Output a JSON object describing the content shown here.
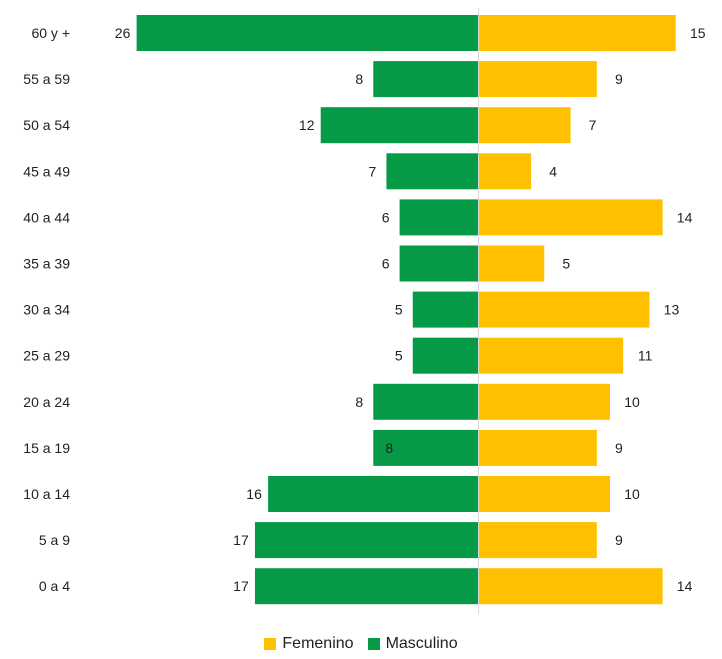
{
  "chart_data": {
    "type": "bar",
    "orientation": "horizontal-diverging",
    "categories": [
      "60 y +",
      "55 a 59",
      "50 a 54",
      "45 a 49",
      "40 a 44",
      "35 a 39",
      "30 a 34",
      "25 a 29",
      "20 a 24",
      "15 a 19",
      "10 a 14",
      "5 a 9",
      "0 a 4"
    ],
    "series": [
      {
        "name": "Femenino",
        "side": "right",
        "color": "#FFC000",
        "values": [
          15,
          9,
          7,
          4,
          14,
          5,
          13,
          11,
          10,
          9,
          10,
          9,
          14
        ]
      },
      {
        "name": "Masculino",
        "side": "left",
        "color": "#069A46",
        "values": [
          26,
          8,
          12,
          7,
          6,
          6,
          5,
          5,
          8,
          8,
          16,
          17,
          17
        ]
      }
    ],
    "legend_position": "bottom",
    "grid": false
  }
}
